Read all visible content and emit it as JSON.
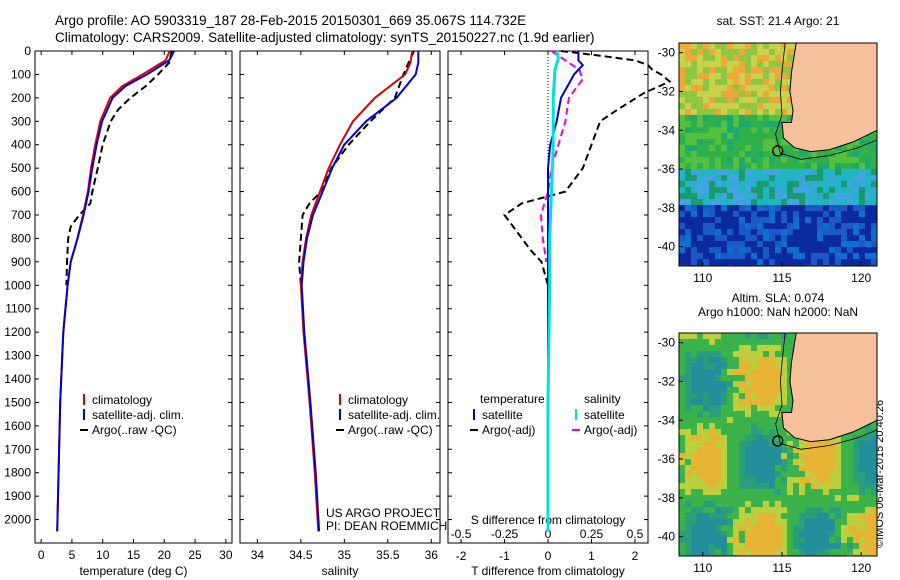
{
  "header": {
    "line1": "Argo profile: AO 5903319_187 28-Feb-2015 20150301_669 35.067S 114.732E",
    "line2": "Climatology: CARS2009. Satellite-adjusted climatology: synTS_20150227.nc (1.9d earlier)"
  },
  "stamp": "©IMOS 06-Mar-2015 20:40:26",
  "colors": {
    "climatology": "#dd0000",
    "satellite": "#0000dd",
    "argo": "#000000",
    "salinity_satellite": "#00e0e0",
    "salinity_argo": "#ee00ee",
    "land": "#f5c09a"
  },
  "chart_data": [
    {
      "type": "line",
      "name": "temperature-profile",
      "xlabel": "temperature (deg C)",
      "ylabel": "",
      "xlim": [
        -1,
        31
      ],
      "ylim": [
        2100,
        0
      ],
      "xticks": [
        "0",
        "5",
        "10",
        "15",
        "20",
        "25",
        "30"
      ],
      "yticks": [
        "0",
        "100",
        "200",
        "300",
        "400",
        "500",
        "600",
        "700",
        "800",
        "900",
        "1000",
        "1100",
        "1200",
        "1300",
        "1400",
        "1500",
        "1600",
        "1700",
        "1800",
        "1900",
        "2000"
      ],
      "legend": [
        "climatology",
        "satellite-adj. clim.",
        "Argo(..raw -QC)"
      ],
      "legend_loc": "lower-right",
      "series": [
        {
          "name": "climatology",
          "depth": [
            0,
            40,
            100,
            150,
            200,
            300,
            400,
            500,
            600,
            700,
            800,
            900,
            1000,
            1200,
            1500,
            2050
          ],
          "values": [
            20.9,
            20.2,
            16.5,
            13.2,
            11.2,
            9.6,
            8.8,
            8.1,
            7.6,
            6.8,
            5.9,
            4.8,
            4.3,
            3.6,
            3.1,
            2.6
          ]
        },
        {
          "name": "satellite-adj. clim.",
          "depth": [
            0,
            40,
            100,
            150,
            200,
            300,
            400,
            500,
            600,
            700,
            800,
            900,
            1000,
            1200,
            1500,
            2050
          ],
          "values": [
            21.6,
            20.8,
            17.2,
            13.7,
            11.6,
            9.9,
            9.0,
            8.3,
            7.7,
            6.9,
            5.9,
            4.8,
            4.3,
            3.6,
            3.1,
            2.6
          ]
        },
        {
          "name": "Argo(..raw -QC)",
          "depth": [
            0,
            50,
            100,
            150,
            200,
            250,
            300,
            400,
            500,
            600,
            650,
            700,
            750,
            800,
            900,
            1000
          ],
          "values": [
            21.2,
            20.8,
            19.0,
            17.0,
            14.5,
            12.5,
            11.3,
            10.0,
            9.2,
            8.3,
            8.0,
            6.2,
            4.8,
            4.4,
            4.2,
            4.1
          ]
        }
      ]
    },
    {
      "type": "line",
      "name": "salinity-profile",
      "xlabel": "salinity",
      "ylabel": "",
      "xlim": [
        33.8,
        36.1
      ],
      "ylim": [
        2100,
        0
      ],
      "xticks": [
        "34",
        "34.5",
        "35",
        "35.5",
        "36"
      ],
      "legend": [
        "climatology",
        "satellite-adj. clim.",
        "Argo(..raw -QC)"
      ],
      "legend_loc": "lower-right",
      "annotation": [
        "US ARGO PROJECT",
        "PI: DEAN ROEMMICH"
      ],
      "series": [
        {
          "name": "climatology",
          "depth": [
            0,
            50,
            100,
            200,
            300,
            400,
            500,
            600,
            700,
            800,
            900,
            1000,
            1200,
            1500,
            1800,
            2050
          ],
          "values": [
            35.78,
            35.76,
            35.7,
            35.35,
            35.1,
            34.95,
            34.82,
            34.72,
            34.62,
            34.56,
            34.52,
            34.5,
            34.53,
            34.6,
            34.66,
            34.7
          ]
        },
        {
          "name": "satellite-adj. clim.",
          "depth": [
            0,
            50,
            100,
            200,
            300,
            400,
            500,
            600,
            700,
            800,
            900,
            1000,
            1200,
            1500,
            1800,
            2050
          ],
          "values": [
            35.85,
            35.85,
            35.82,
            35.6,
            35.25,
            35.0,
            34.86,
            34.75,
            34.64,
            34.57,
            34.53,
            34.51,
            34.54,
            34.61,
            34.67,
            34.71
          ]
        },
        {
          "name": "Argo(..raw -QC)",
          "depth": [
            0,
            40,
            100,
            200,
            300,
            400,
            500,
            600,
            650,
            700,
            800,
            900,
            1000
          ],
          "values": [
            35.8,
            35.75,
            35.68,
            35.58,
            35.3,
            35.05,
            34.85,
            34.73,
            34.6,
            34.52,
            34.5,
            34.48,
            34.5
          ]
        }
      ]
    },
    {
      "type": "line",
      "name": "difference-profile",
      "xlabel": "T difference from climatology",
      "xlim": [
        -2.3,
        2.3
      ],
      "xticks": [
        "-2",
        "-1",
        "0",
        "1",
        "2"
      ],
      "top_axis_label": "S difference from climatology",
      "top_ticks": [
        "-0.5",
        "-0.25",
        "0",
        "0.25",
        "0.5"
      ],
      "legend": [
        "temperature",
        "satellite",
        "Argo(-adj)",
        "salinity",
        "satellite",
        "Argo(-adj)"
      ],
      "legend_loc": "lower",
      "series": [
        {
          "name": "temperature satellite",
          "depth": [
            0,
            40,
            60,
            100,
            200,
            300,
            400,
            500,
            600,
            800,
            1000,
            1500,
            2050
          ],
          "values": [
            0.7,
            0.7,
            0.8,
            0.6,
            0.3,
            0.2,
            0.05,
            0.0,
            0.0,
            0.0,
            0.0,
            0.0,
            0.0
          ]
        },
        {
          "name": "temperature Argo(-adj)",
          "depth": [
            0,
            20,
            40,
            60,
            80,
            100,
            130,
            180,
            250,
            300,
            400,
            500,
            600,
            650,
            700,
            750,
            800,
            850,
            900,
            1000
          ],
          "values": [
            0.3,
            1.2,
            2.0,
            2.3,
            2.4,
            2.6,
            2.8,
            2.2,
            1.6,
            1.2,
            1.0,
            0.8,
            0.4,
            -0.6,
            -1.0,
            -0.8,
            -0.6,
            -0.4,
            -0.15,
            0.0
          ]
        },
        {
          "name": "salinity satellite",
          "depth": [
            0,
            30,
            80,
            200,
            400,
            600,
            800,
            1000,
            1500,
            2050
          ],
          "values": [
            0.05,
            0.06,
            0.04,
            0.03,
            0.03,
            0.02,
            0.01,
            0.01,
            0.0,
            0.0
          ]
        },
        {
          "name": "salinity Argo(-adj)",
          "depth": [
            0,
            50,
            80,
            120,
            200,
            300,
            400,
            500,
            600,
            650,
            700,
            800,
            900
          ],
          "values": [
            0.02,
            0.12,
            0.18,
            0.2,
            0.12,
            0.1,
            0.06,
            0.02,
            0.0,
            -0.02,
            -0.04,
            -0.03,
            -0.01
          ]
        }
      ]
    },
    {
      "type": "heatmap",
      "name": "sst-map",
      "title": "sat. SST: 21.4  Argo: 21",
      "xlim": [
        108.5,
        121
      ],
      "ylim": [
        -41,
        -29.5
      ],
      "xticks": [
        "110",
        "115",
        "120"
      ],
      "yticks": [
        "-30",
        "-32",
        "-34",
        "-36",
        "-38",
        "-40"
      ],
      "argo_position": [
        114.732,
        -35.067
      ]
    },
    {
      "type": "heatmap",
      "name": "sla-map",
      "title": [
        "Altim. SLA: 0.074",
        "Argo h1000: NaN h2000: NaN"
      ],
      "xlim": [
        108.5,
        121
      ],
      "ylim": [
        -41,
        -29.5
      ],
      "xticks": [
        "110",
        "115",
        "120"
      ],
      "yticks": [
        "-30",
        "-32",
        "-34",
        "-36",
        "-38",
        "-40"
      ],
      "argo_position": [
        114.732,
        -35.067
      ]
    }
  ]
}
